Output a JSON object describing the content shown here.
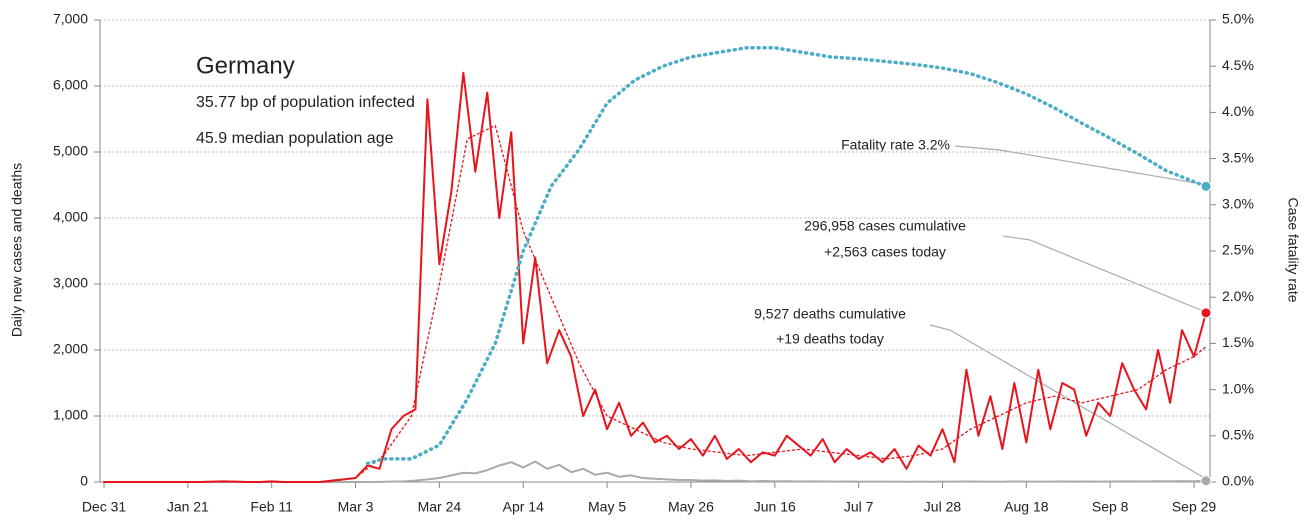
{
  "chart_data": {
    "type": "line",
    "title": "Germany",
    "subtitle": [
      "35.77 bp of population infected",
      "45.9 median population age"
    ],
    "ylabel": "Daily new cases and deaths",
    "y2label": "Case fatality rate",
    "y2color": "#4bacc6",
    "grid": true,
    "xlim": [
      -1,
      277
    ],
    "xticks": [
      {
        "value": 0,
        "label": "Dec 31"
      },
      {
        "value": 21,
        "label": "Jan 21"
      },
      {
        "value": 42,
        "label": "Feb 11"
      },
      {
        "value": 63,
        "label": "Mar 3"
      },
      {
        "value": 84,
        "label": "Mar 24"
      },
      {
        "value": 105,
        "label": "Apr 14"
      },
      {
        "value": 126,
        "label": "May 5"
      },
      {
        "value": 147,
        "label": "May 26"
      },
      {
        "value": 168,
        "label": "Jun 16"
      },
      {
        "value": 189,
        "label": "Jul 7"
      },
      {
        "value": 210,
        "label": "Jul 28"
      },
      {
        "value": 231,
        "label": "Aug 18"
      },
      {
        "value": 252,
        "label": "Sep 8"
      },
      {
        "value": 273,
        "label": "Sep 29"
      }
    ],
    "ylim": [
      0,
      7000
    ],
    "yticks": [
      0,
      {
        "value": 1000,
        "label": "1,000"
      },
      {
        "value": 2000,
        "label": "2,000"
      },
      {
        "value": 3000,
        "label": "3,000"
      },
      {
        "value": 4000,
        "label": "4,000"
      },
      {
        "value": 5000,
        "label": "5,000"
      },
      {
        "value": 6000,
        "label": "6,000"
      },
      {
        "value": 7000,
        "label": "7,000"
      }
    ],
    "y2lim": [
      0,
      5
    ],
    "y2ticks": [
      {
        "value": 0,
        "label": "0.0%"
      },
      {
        "value": 0.5,
        "label": "0.5%"
      },
      {
        "value": 1,
        "label": "1.0%"
      },
      {
        "value": 1.5,
        "label": "1.5%"
      },
      {
        "value": 2,
        "label": "2.0%"
      },
      {
        "value": 2.5,
        "label": "2.5%"
      },
      {
        "value": 3,
        "label": "3.0%"
      },
      {
        "value": 3.5,
        "label": "3.5%"
      },
      {
        "value": 4,
        "label": "4.0%"
      },
      {
        "value": 4.5,
        "label": "4.5%"
      },
      {
        "value": 5,
        "label": "5.0%"
      }
    ],
    "series": [
      {
        "color": "#aaaaaa",
        "style": "solid",
        "x": [
          0,
          3,
          6,
          9,
          12,
          15,
          18,
          21,
          24,
          27,
          30,
          33,
          36,
          39,
          42,
          45,
          48,
          51,
          54,
          57,
          60,
          63,
          66,
          69,
          72,
          75,
          78,
          81,
          84,
          87,
          90,
          93,
          96,
          99,
          102,
          105,
          108,
          111,
          114,
          117,
          120,
          123,
          126,
          129,
          132,
          135,
          138,
          141,
          144,
          147,
          150,
          153,
          156,
          159,
          162,
          165,
          168,
          171,
          174,
          177,
          180,
          183,
          186,
          189,
          192,
          195,
          198,
          201,
          204,
          207,
          210,
          213,
          216,
          219,
          222,
          225,
          228,
          231,
          234,
          237,
          240,
          243,
          246,
          249,
          252,
          255,
          258,
          261,
          264,
          267,
          270,
          273,
          276
        ],
        "values": [
          0,
          0,
          0,
          0,
          0,
          0,
          0,
          0,
          0,
          0,
          0,
          0,
          0,
          0,
          0,
          0,
          0,
          0,
          0,
          0,
          0,
          0,
          0,
          2,
          5,
          10,
          20,
          40,
          60,
          100,
          140,
          130,
          180,
          250,
          300,
          220,
          310,
          200,
          260,
          150,
          200,
          110,
          140,
          80,
          100,
          60,
          50,
          40,
          30,
          30,
          20,
          25,
          15,
          20,
          10,
          15,
          10,
          12,
          8,
          10,
          8,
          6,
          8,
          5,
          6,
          5,
          6,
          4,
          5,
          4,
          6,
          5,
          7,
          5,
          6,
          4,
          8,
          5,
          6,
          5,
          7,
          6,
          8,
          5,
          8,
          10,
          9,
          8,
          12,
          10,
          14,
          12,
          19
        ]
      },
      {
        "color": "#e8141c",
        "style": "dotted",
        "x": [
          0,
          7,
          14,
          21,
          28,
          35,
          42,
          49,
          56,
          63,
          70,
          77,
          84,
          91,
          98,
          105,
          112,
          119,
          126,
          133,
          140,
          147,
          154,
          161,
          168,
          175,
          182,
          189,
          196,
          203,
          210,
          217,
          224,
          231,
          238,
          245,
          252,
          259,
          266,
          273,
          276
        ],
        "values": [
          0,
          0,
          0,
          0,
          0,
          0,
          0,
          0,
          0,
          60,
          400,
          1000,
          3000,
          5200,
          5400,
          3800,
          2800,
          1800,
          1000,
          800,
          600,
          500,
          450,
          400,
          450,
          500,
          450,
          400,
          350,
          400,
          500,
          800,
          1000,
          1200,
          1300,
          1200,
          1300,
          1400,
          1700,
          1900,
          2050
        ]
      },
      {
        "color": "#e8141c",
        "style": "solid",
        "x": [
          0,
          3,
          6,
          9,
          12,
          15,
          18,
          21,
          24,
          27,
          30,
          33,
          36,
          39,
          42,
          45,
          48,
          51,
          54,
          57,
          60,
          63,
          66,
          69,
          72,
          75,
          78,
          81,
          84,
          87,
          90,
          93,
          96,
          99,
          102,
          105,
          108,
          111,
          114,
          117,
          120,
          123,
          126,
          129,
          132,
          135,
          138,
          141,
          144,
          147,
          150,
          153,
          156,
          159,
          162,
          165,
          168,
          171,
          174,
          177,
          180,
          183,
          186,
          189,
          192,
          195,
          198,
          201,
          204,
          207,
          210,
          213,
          216,
          219,
          222,
          225,
          228,
          231,
          234,
          237,
          240,
          243,
          246,
          249,
          252,
          255,
          258,
          261,
          264,
          267,
          270,
          273,
          276
        ],
        "values": [
          0,
          0,
          0,
          0,
          0,
          0,
          0,
          0,
          0,
          5,
          10,
          5,
          0,
          0,
          10,
          0,
          0,
          0,
          0,
          20,
          40,
          60,
          250,
          200,
          800,
          1000,
          1100,
          5800,
          3300,
          4400,
          6200,
          4700,
          5900,
          4000,
          5300,
          2100,
          3400,
          1800,
          2300,
          1900,
          1000,
          1400,
          800,
          1200,
          700,
          900,
          600,
          700,
          500,
          650,
          400,
          700,
          350,
          500,
          300,
          450,
          400,
          700,
          550,
          400,
          650,
          300,
          500,
          350,
          450,
          300,
          500,
          200,
          550,
          400,
          800,
          300,
          1700,
          700,
          1300,
          500,
          1500,
          600,
          1700,
          800,
          1500,
          1400,
          700,
          1200,
          1000,
          1800,
          1400,
          1100,
          2000,
          1200,
          2300,
          1900,
          2563
        ]
      },
      {
        "color": "#4bacc6",
        "style": "dotted",
        "axis": "y2",
        "x": [
          66,
          70,
          77,
          84,
          91,
          98,
          105,
          112,
          119,
          126,
          133,
          140,
          147,
          154,
          161,
          168,
          175,
          182,
          189,
          196,
          203,
          210,
          217,
          224,
          231,
          238,
          245,
          252,
          259,
          266,
          273,
          276
        ],
        "values": [
          0.2,
          0.25,
          0.25,
          0.4,
          0.9,
          1.5,
          2.5,
          3.2,
          3.6,
          4.1,
          4.35,
          4.5,
          4.6,
          4.65,
          4.7,
          4.7,
          4.65,
          4.6,
          4.58,
          4.55,
          4.52,
          4.48,
          4.42,
          4.32,
          4.2,
          4.05,
          3.88,
          3.72,
          3.55,
          3.37,
          3.25,
          3.2
        ]
      }
    ],
    "annotations": [
      "Fatality rate 3.2%",
      "296,958 cases cumulative",
      "+2,563 cases today",
      "9,527 deaths cumulative",
      "+19 deaths today"
    ]
  }
}
